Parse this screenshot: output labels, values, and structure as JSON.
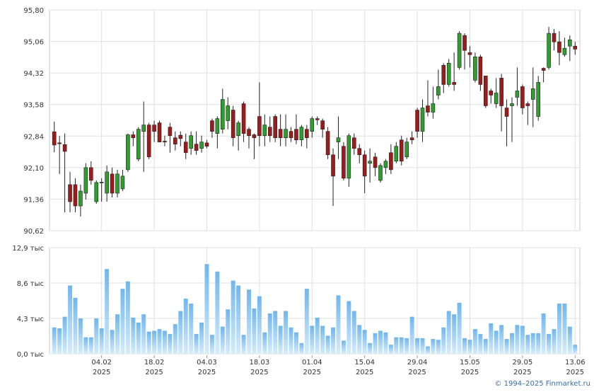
{
  "chart_data": {
    "type": "candlestick",
    "categories": [
      null,
      null,
      null,
      null,
      null,
      null,
      null,
      null,
      null,
      "04.02",
      null,
      null,
      null,
      null,
      null,
      null,
      null,
      null,
      null,
      "18.02",
      null,
      null,
      null,
      null,
      null,
      null,
      null,
      null,
      null,
      "04.03",
      null,
      null,
      null,
      null,
      null,
      null,
      null,
      null,
      null,
      "18.03",
      null,
      null,
      null,
      null,
      null,
      null,
      null,
      null,
      null,
      "01.04",
      null,
      null,
      null,
      null,
      null,
      null,
      null,
      null,
      null,
      "15.04",
      null,
      null,
      null,
      null,
      null,
      null,
      null,
      null,
      null,
      "29.04",
      null,
      null,
      null,
      null,
      null,
      null,
      null,
      null,
      null,
      "15.05",
      null,
      null,
      null,
      null,
      null,
      null,
      null,
      null,
      null,
      "29.05",
      null,
      null,
      null,
      null,
      null,
      null,
      null,
      null,
      null,
      "13.06"
    ],
    "year": "2025",
    "open": [
      92.94,
      92.68,
      92.64,
      91.7,
      91.7,
      91.2,
      91.5,
      92.1,
      91.3,
      91.74,
      91.5,
      91.95,
      91.5,
      91.6,
      92.05,
      92.87,
      92.3,
      92.95,
      93.1,
      93.1,
      93.15,
      92.72,
      93.05,
      92.8,
      92.86,
      92.7,
      92.55,
      92.65,
      92.55,
      92.68,
      93.2,
      92.9,
      93.0,
      93.2,
      93.45,
      92.85,
      93.6,
      93.0,
      92.87,
      93.3,
      92.85,
      93.05,
      93.3,
      93.0,
      92.8,
      92.95,
      93.0,
      92.75,
      93.0,
      92.95,
      93.25,
      93.2,
      92.95,
      92.4,
      92.7,
      92.6,
      91.85,
      92.8,
      92.55,
      92.4,
      92.2,
      92.35,
      91.8,
      92.1,
      92.45,
      92.25,
      92.75,
      92.35,
      92.8,
      93.45,
      92.95,
      93.55,
      93.4,
      93.8,
      94.5,
      94.05,
      94.1,
      94.45,
      95.2,
      94.8,
      94.15,
      94.7,
      94.25,
      93.9,
      93.6,
      94.2,
      93.5,
      93.55,
      93.75,
      94.0,
      93.6,
      93.7,
      93.3,
      94.43,
      94.45,
      95.25,
      95.05,
      94.75,
      94.95,
      94.95
    ],
    "high": [
      93.18,
      92.84,
      92.9,
      92.0,
      91.85,
      91.7,
      92.2,
      92.25,
      91.8,
      91.85,
      92.15,
      92.1,
      92.05,
      92.05,
      92.9,
      92.95,
      93.05,
      93.65,
      93.15,
      93.2,
      93.2,
      92.85,
      93.15,
      92.95,
      92.95,
      92.9,
      92.95,
      92.95,
      92.85,
      92.75,
      93.25,
      93.3,
      93.95,
      93.75,
      93.55,
      93.2,
      93.65,
      93.05,
      92.9,
      94.1,
      93.35,
      93.3,
      93.35,
      93.35,
      93.35,
      93.05,
      93.35,
      93.1,
      93.1,
      93.3,
      93.3,
      93.25,
      93.05,
      92.55,
      93.3,
      92.7,
      92.9,
      92.9,
      92.65,
      92.5,
      92.55,
      92.45,
      92.2,
      92.3,
      92.65,
      92.7,
      92.85,
      92.8,
      92.95,
      93.5,
      93.7,
      94.15,
      94.0,
      94.4,
      94.55,
      94.65,
      94.8,
      95.3,
      95.25,
      94.95,
      94.8,
      94.75,
      94.25,
      93.95,
      94.2,
      94.3,
      93.7,
      93.75,
      94.45,
      94.05,
      93.65,
      94.45,
      94.25,
      94.45,
      95.4,
      95.35,
      95.3,
      95.15,
      95.2,
      95.05
    ],
    "low": [
      92.46,
      91.95,
      91.05,
      91.05,
      91.05,
      90.95,
      91.35,
      91.7,
      91.25,
      91.3,
      91.3,
      91.4,
      91.4,
      91.55,
      92.0,
      92.6,
      92.25,
      92.0,
      92.3,
      92.7,
      92.7,
      92.6,
      92.45,
      92.5,
      92.6,
      92.3,
      92.4,
      92.4,
      92.45,
      92.55,
      92.8,
      92.55,
      92.9,
      93.0,
      92.6,
      92.5,
      92.7,
      92.55,
      92.3,
      92.6,
      92.6,
      92.7,
      92.7,
      92.6,
      92.6,
      92.7,
      92.65,
      92.6,
      92.55,
      92.8,
      93.1,
      92.8,
      92.3,
      91.2,
      92.3,
      91.8,
      91.65,
      92.4,
      92.2,
      91.5,
      91.75,
      91.9,
      91.75,
      91.95,
      91.95,
      92.2,
      92.15,
      92.3,
      92.65,
      92.8,
      92.7,
      93.3,
      93.25,
      93.7,
      93.85,
      94.0,
      93.9,
      94.4,
      94.4,
      94.45,
      94.1,
      93.9,
      93.5,
      93.6,
      93.5,
      92.95,
      92.6,
      92.7,
      93.55,
      93.35,
      93.1,
      93.05,
      93.2,
      94.1,
      94.4,
      94.85,
      94.5,
      94.7,
      94.6,
      94.75
    ],
    "close": [
      92.63,
      92.66,
      92.48,
      91.3,
      91.2,
      91.55,
      92.1,
      91.8,
      91.75,
      91.76,
      92.0,
      91.5,
      91.95,
      91.9,
      92.87,
      92.8,
      93.0,
      93.1,
      92.35,
      92.95,
      92.7,
      92.7,
      92.85,
      92.65,
      92.78,
      92.45,
      92.85,
      92.5,
      92.7,
      92.6,
      92.95,
      93.25,
      93.7,
      93.55,
      92.8,
      93.15,
      92.9,
      92.85,
      92.8,
      92.85,
      93.1,
      92.85,
      92.8,
      92.8,
      93.0,
      92.8,
      92.75,
      93.05,
      92.8,
      93.25,
      93.22,
      93.0,
      92.4,
      91.9,
      92.8,
      91.85,
      92.85,
      92.55,
      92.4,
      91.9,
      92.25,
      92.1,
      92.15,
      92.25,
      92.05,
      92.6,
      92.25,
      92.7,
      92.75,
      92.95,
      93.5,
      93.4,
      93.6,
      94.0,
      94.05,
      94.55,
      94.05,
      95.25,
      94.85,
      94.75,
      94.7,
      94.05,
      93.55,
      93.8,
      93.85,
      93.55,
      93.3,
      93.6,
      93.9,
      93.5,
      93.55,
      93.95,
      94.1,
      94.38,
      95.25,
      95.05,
      94.8,
      94.9,
      95.1,
      94.88
    ],
    "up_color": "#2e9e2e",
    "down_color": "#9e1b1b",
    "ylim": [
      90.62,
      95.8
    ],
    "yticks": [
      {
        "value": 90.62,
        "label": "90,62"
      },
      {
        "value": 91.36,
        "label": "91,36"
      },
      {
        "value": 92.1,
        "label": "92,10"
      },
      {
        "value": 92.84,
        "label": "92,84"
      },
      {
        "value": 93.58,
        "label": "93,58"
      },
      {
        "value": 94.32,
        "label": "94,32"
      },
      {
        "value": 95.06,
        "label": "95,06"
      },
      {
        "value": 95.8,
        "label": "95,80"
      }
    ],
    "grid": true,
    "volume": {
      "values": [
        3.2,
        3.1,
        4.5,
        8.3,
        6.8,
        4.3,
        2.0,
        2.0,
        4.3,
        3.1,
        10.3,
        2.9,
        4.8,
        7.9,
        8.8,
        4.4,
        3.8,
        4.8,
        2.7,
        2.8,
        3.0,
        2.8,
        2.4,
        3.6,
        5.2,
        6.7,
        6.1,
        2.4,
        3.8,
        10.9,
        2.3,
        10.0,
        3.3,
        5.4,
        8.9,
        8.3,
        2.3,
        7.8,
        5.5,
        7.0,
        2.6,
        4.9,
        5.2,
        3.4,
        5.2,
        3.2,
        2.6,
        1.3,
        7.9,
        3.4,
        4.4,
        3.4,
        2.2,
        3.2,
        7.1,
        1.6,
        6.4,
        5.2,
        3.5,
        2.9,
        1.3,
        2.5,
        2.8,
        2.6,
        1.1,
        2.0,
        2.0,
        1.9,
        4.5,
        1.9,
        1.9,
        0.9,
        1.8,
        1.7,
        3.2,
        5.2,
        4.8,
        6.2,
        1.9,
        1.7,
        3.0,
        2.4,
        1.8,
        3.7,
        2.8,
        3.5,
        1.8,
        2.5,
        3.5,
        3.4,
        2.3,
        2.5,
        2.5,
        4.9,
        2.4,
        3.0,
        6.1,
        6.1,
        3.3,
        1.1
      ],
      "color": "#87c5f0",
      "ylim": [
        0,
        12.9
      ],
      "yticks": [
        {
          "value": 0,
          "label": "0,0 тыс"
        },
        {
          "value": 4.3,
          "label": "4,3 тыс"
        },
        {
          "value": 8.6,
          "label": "8,6 тыс"
        },
        {
          "value": 12.9,
          "label": "12,9 тыс"
        }
      ]
    },
    "copyright": "© 1994–2025 Finmarket.ru"
  }
}
